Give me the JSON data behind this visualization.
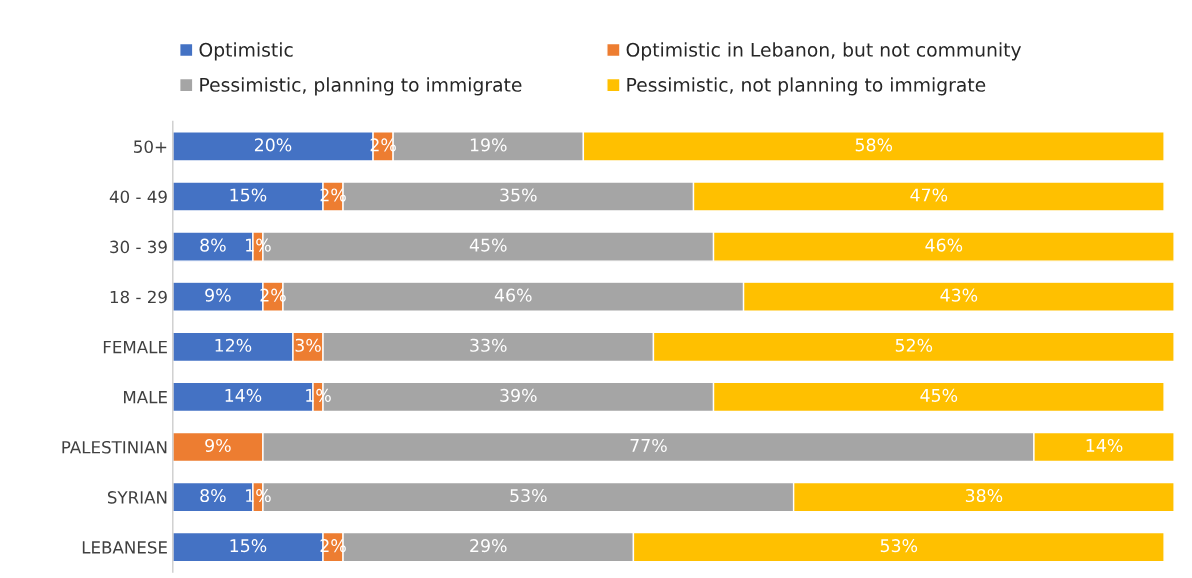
{
  "chart_data": {
    "type": "bar",
    "orientation": "horizontal",
    "stacked": true,
    "legend": "top",
    "grid": false,
    "tick_labels": "y",
    "categories": [
      "50+",
      "40 - 49",
      "30 - 39",
      "18 - 29",
      "FEMALE",
      "MALE",
      "PALESTINIAN",
      "SYRIAN",
      "LEBANESE"
    ],
    "series": [
      {
        "name": "Optimistic",
        "color": "#4472c4",
        "values": [
          20,
          15,
          8,
          9,
          12,
          14,
          0,
          8,
          15
        ],
        "value_labels": [
          "20%",
          "15%",
          "8%",
          "9%",
          "12%",
          "14%",
          null,
          "8%",
          "15%"
        ]
      },
      {
        "name": "Optimistic in Lebanon, but not community",
        "color": "#ed7d31",
        "values": [
          2,
          2,
          1,
          2,
          3,
          1,
          9,
          1,
          2
        ],
        "value_labels": [
          "2%",
          "2%",
          "1%",
          "2%",
          "3%",
          "1%",
          "9%",
          "1%",
          "2%"
        ]
      },
      {
        "name": "Pessimistic, planning to immigrate",
        "color": "#a5a5a5",
        "values": [
          19,
          35,
          45,
          46,
          33,
          39,
          77,
          53,
          29
        ],
        "value_labels": [
          "19%",
          "35%",
          "45%",
          "46%",
          "33%",
          "39%",
          "77%",
          "53%",
          "29%"
        ]
      },
      {
        "name": "Pessimistic, not planning to immigrate",
        "color": "#ffc000",
        "values": [
          58,
          47,
          46,
          43,
          52,
          45,
          14,
          38,
          53
        ],
        "value_labels": [
          "58%",
          "47%",
          "46%",
          "43%",
          "52%",
          "45%",
          "14%",
          "38%",
          "53%"
        ]
      }
    ]
  }
}
